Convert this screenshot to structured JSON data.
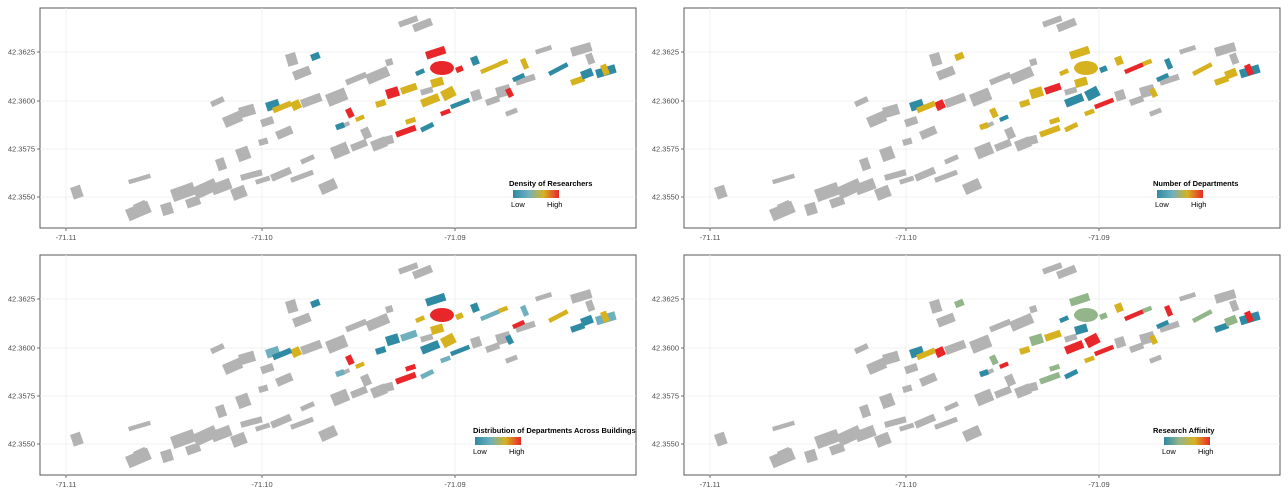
{
  "colors": {
    "low": "#2e8ba3",
    "mid_low": "#6fb0bf",
    "mid": "#d7b21f",
    "high": "#e8272b",
    "affinity_green": "#93b58a",
    "building_gray": "#b3b3b3",
    "frame": "#5a5a5a",
    "grid": "#ededed"
  },
  "axes": {
    "y_ticks": [
      "42.3625",
      "42.3600",
      "42.3575",
      "42.3550"
    ],
    "x_ticks": [
      "-71.11",
      "-71.10",
      "-71.09"
    ]
  },
  "panels": [
    {
      "legend": {
        "title": "Density of Researchers",
        "low": "Low",
        "high": "High"
      },
      "palette": [
        "low",
        "low",
        "mid",
        "mid",
        "high",
        "low",
        "mid",
        "high",
        "mid",
        "low",
        "mid",
        "mid",
        "high",
        "low",
        "mid",
        "high",
        "low",
        "mid",
        "mid",
        "low",
        "high",
        "mid",
        "low",
        "mid"
      ]
    },
    {
      "legend": {
        "title": "Number of Departments",
        "low": "Low",
        "high": "High"
      },
      "palette": [
        "mid",
        "low",
        "high",
        "mid",
        "mid",
        "mid",
        "low",
        "mid",
        "high",
        "mid",
        "low",
        "mid",
        "mid",
        "high",
        "mid",
        "low",
        "mid",
        "high",
        "mid",
        "low",
        "mid",
        "low",
        "mid",
        "mid"
      ]
    },
    {
      "legend": {
        "title": "Distribution of Departments Across Buildings",
        "low": "Low",
        "high": "High"
      },
      "palette": [
        "low",
        "mid_low",
        "mid",
        "low",
        "high",
        "mid_low",
        "mid",
        "low",
        "mid_low",
        "mid",
        "low",
        "high",
        "mid_low",
        "low",
        "mid",
        "mid",
        "low",
        "mid_low",
        "mid",
        "high",
        "low",
        "mid_low",
        "mid",
        "low"
      ]
    },
    {
      "legend": {
        "title": "Research Affinity",
        "low": "Low",
        "high": "High"
      },
      "palette": [
        "affinity_green",
        "low",
        "high",
        "mid",
        "affinity_green",
        "low",
        "high",
        "affinity_green",
        "mid",
        "low",
        "high",
        "affinity_green",
        "mid",
        "high",
        "low",
        "affinity_green",
        "mid",
        "high",
        "affinity_green",
        "low",
        "mid",
        "high",
        "affinity_green",
        "low"
      ]
    }
  ]
}
